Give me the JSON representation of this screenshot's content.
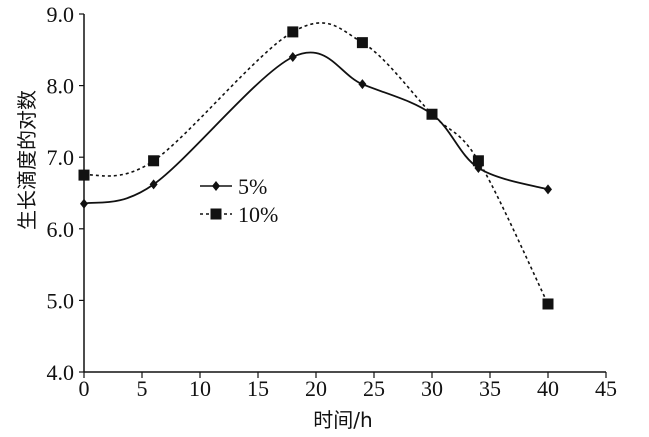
{
  "chart_data": {
    "type": "line",
    "title": "",
    "xlabel": "时间/h",
    "ylabel": "生长滴度的对数",
    "xlim": [
      0,
      45
    ],
    "ylim": [
      4.0,
      9.0
    ],
    "x_ticks": [
      0,
      5,
      10,
      15,
      20,
      25,
      30,
      35,
      40,
      45
    ],
    "x_tick_labels": [
      "0",
      "5",
      "10",
      "15",
      "20",
      "25",
      "30",
      "35",
      "40",
      "45"
    ],
    "y_ticks": [
      4.0,
      5.0,
      6.0,
      7.0,
      8.0,
      9.0
    ],
    "y_tick_labels": [
      "4.0",
      "5.0",
      "6.0",
      "7.0",
      "8.0",
      "9.0"
    ],
    "grid": false,
    "legend_position": "left-center",
    "series": [
      {
        "name": "5%",
        "marker": "diamond",
        "line_style": "solid",
        "x": [
          0,
          6,
          18,
          24,
          30,
          34,
          40
        ],
        "y": [
          6.35,
          6.62,
          8.4,
          8.02,
          7.6,
          6.85,
          6.55
        ]
      },
      {
        "name": "10%",
        "marker": "square",
        "line_style": "dotted",
        "x": [
          0,
          6,
          18,
          24,
          30,
          34,
          40
        ],
        "y": [
          6.75,
          6.95,
          8.75,
          8.6,
          7.6,
          6.95,
          4.95
        ]
      }
    ]
  },
  "colors": {
    "line": "#111111",
    "background": "#ffffff"
  }
}
